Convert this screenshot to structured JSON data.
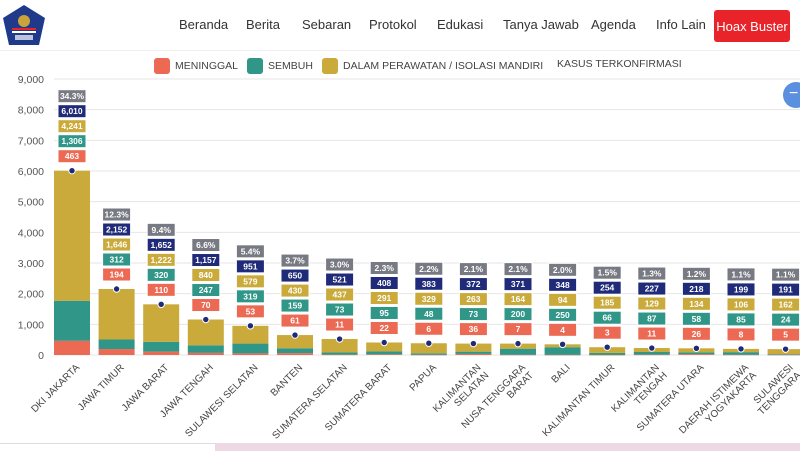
{
  "header": {
    "logo_alt": "COVID-19 Task Force Logo",
    "nav": [
      "Beranda",
      "Berita",
      "Sebaran",
      "Protokol",
      "Edukasi",
      "Tanya Jawab",
      "Agenda",
      "Info Lain"
    ],
    "cta_label": "Hoax Buster",
    "cta_color": "#e8232a"
  },
  "zoom_control": {
    "icon": "minus-icon",
    "label": "−"
  },
  "colors": {
    "meninggal": "#ec6a54",
    "sembuh": "#2f9688",
    "perawatan": "#c9aa3a",
    "terkonfirmasi": "#1f2a78",
    "percent": "#777a82"
  },
  "chart_data": {
    "type": "bar",
    "stacked": true,
    "title": "",
    "xlabel": "",
    "ylabel": "",
    "ylim": [
      0,
      9000
    ],
    "yticks": [
      "0",
      "1,000",
      "2,000",
      "3,000",
      "4,000",
      "5,000",
      "6,000",
      "7,000",
      "8,000",
      "9,000"
    ],
    "grid": true,
    "legend_position": "top-center",
    "legend": [
      "MENINGGAL",
      "SEMBUH",
      "DALAM PERAWATAN / ISOLASI MANDIRI",
      "KASUS TERKONFIRMASI"
    ],
    "categories": [
      [
        "DKI JAKARTA"
      ],
      [
        "JAWA TIMUR"
      ],
      [
        "JAWA BARAT"
      ],
      [
        "JAWA TENGAH"
      ],
      [
        "SULAWESI SELATAN"
      ],
      [
        "BANTEN"
      ],
      [
        "SUMATERA SELATAN"
      ],
      [
        "SUMATERA BARAT"
      ],
      [
        "PAPUA"
      ],
      [
        "KALIMANTAN",
        "SELATAN"
      ],
      [
        "NUSA TENGGARA",
        "BARAT"
      ],
      [
        "BALI"
      ],
      [
        "KALIMANTAN TIMUR"
      ],
      [
        "KALIMANTAN",
        "TENGAH"
      ],
      [
        "SUMATERA UTARA"
      ],
      [
        "DAERAH ISTIMEWA",
        "YOGYAKARTA"
      ],
      [
        "SULAWESI",
        "TENGGARA"
      ]
    ],
    "series": [
      {
        "name": "MENINGGAL",
        "values": [
          463,
          194,
          110,
          70,
          53,
          61,
          11,
          22,
          6,
          36,
          7,
          4,
          3,
          11,
          26,
          8,
          5
        ]
      },
      {
        "name": "SEMBUH",
        "values": [
          1306,
          312,
          320,
          247,
          319,
          159,
          73,
          95,
          48,
          73,
          200,
          250,
          66,
          87,
          58,
          85,
          24
        ]
      },
      {
        "name": "DALAM PERAWATAN / ISOLASI MANDIRI",
        "values": [
          4241,
          1646,
          1222,
          840,
          579,
          430,
          437,
          291,
          329,
          263,
          164,
          94,
          185,
          129,
          134,
          106,
          162
        ]
      },
      {
        "name": "KASUS TERKONFIRMASI",
        "values": [
          6010,
          2152,
          1652,
          1157,
          951,
          650,
          521,
          408,
          383,
          372,
          371,
          348,
          254,
          227,
          218,
          199,
          191
        ]
      }
    ],
    "percent_share": [
      "34.3%",
      "12.3%",
      "9.4%",
      "6.6%",
      "5.4%",
      "3.7%",
      "3.0%",
      "2.3%",
      "2.2%",
      "2.1%",
      "2.1%",
      "2.0%",
      "1.5%",
      "1.3%",
      "1.2%",
      "1.1%",
      "1.1%"
    ],
    "value_labels": {
      "meninggal": [
        "463",
        "194",
        "110",
        "70",
        "53",
        "61",
        "11",
        "22",
        "6",
        "36",
        "7",
        "4",
        "3",
        "11",
        "26",
        "8",
        "5"
      ],
      "sembuh": [
        "1,306",
        "312",
        "320",
        "247",
        "319",
        "159",
        "73",
        "95",
        "48",
        "73",
        "200",
        "250",
        "66",
        "87",
        "58",
        "85",
        "24"
      ],
      "perawatan": [
        "4,241",
        "1,646",
        "1,222",
        "840",
        "579",
        "430",
        "437",
        "291",
        "329",
        "263",
        "164",
        "94",
        "185",
        "129",
        "134",
        "106",
        "162"
      ],
      "terkonfirmasi": [
        "6,010",
        "2,152",
        "1,652",
        "1,157",
        "951",
        "650",
        "521",
        "408",
        "383",
        "372",
        "371",
        "348",
        "254",
        "227",
        "218",
        "199",
        "191"
      ]
    }
  }
}
